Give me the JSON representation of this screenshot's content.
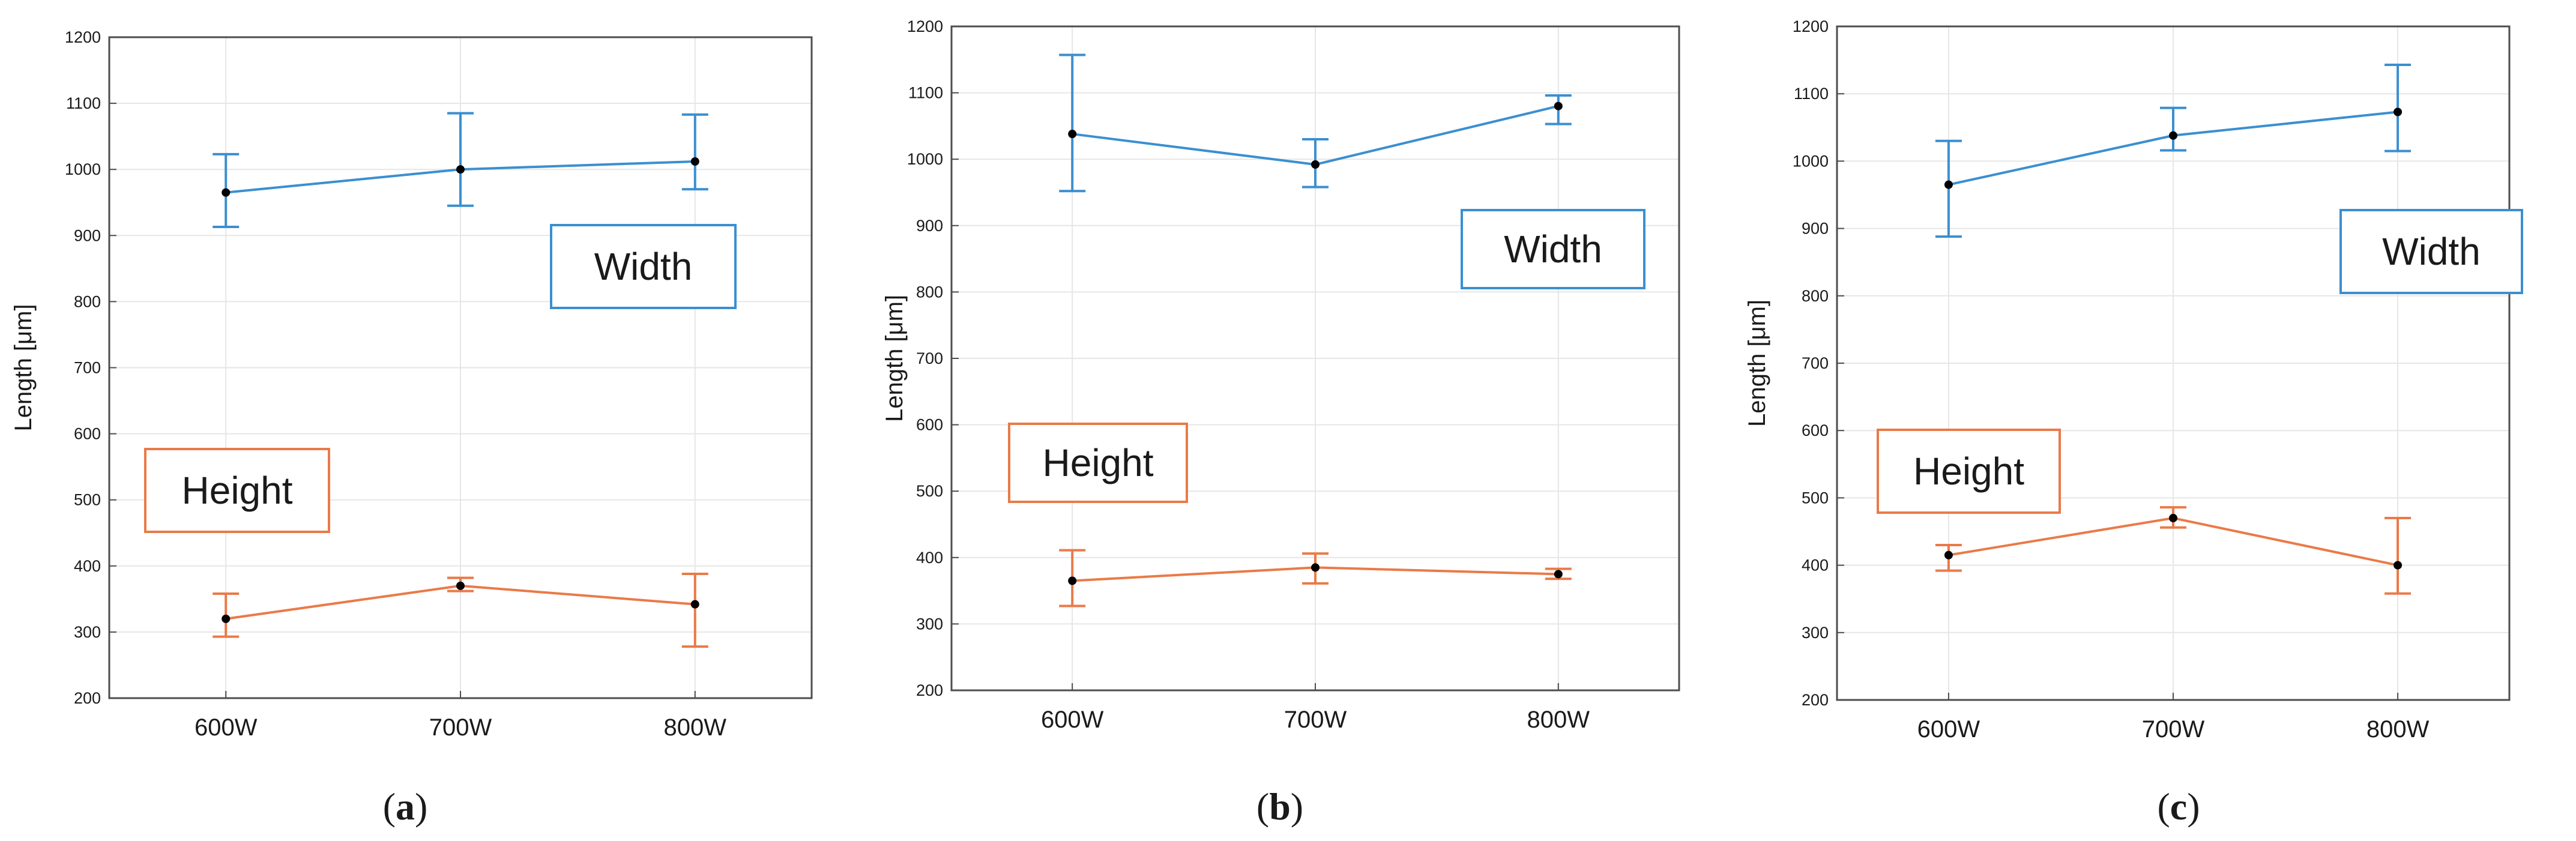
{
  "figure": {
    "panels_caption": [
      "(a)",
      "(b)",
      "(c)"
    ]
  },
  "colors": {
    "width_series": "#3b8fd0",
    "height_series": "#ea7a48",
    "point": "#000000",
    "grid": "#e6e6e6",
    "axis": "#4d4d4d",
    "text": "#1a1a1a"
  },
  "chart_data": [
    {
      "type": "line",
      "panel_label": "a",
      "caption": "(a)",
      "ylabel": "Length [μm]",
      "xlabel": "",
      "categories": [
        "600W",
        "700W",
        "800W"
      ],
      "ylim": [
        200,
        1200
      ],
      "yticks": [
        200,
        300,
        400,
        500,
        600,
        700,
        800,
        900,
        1000,
        1100,
        1200
      ],
      "grid": true,
      "series": [
        {
          "name": "Width",
          "color_key": "width_series",
          "values": [
            965,
            1000,
            1012
          ],
          "err_low": [
            913,
            945,
            970
          ],
          "err_high": [
            1023,
            1085,
            1083
          ]
        },
        {
          "name": "Height",
          "color_key": "height_series",
          "values": [
            320,
            370,
            342
          ],
          "err_low": [
            293,
            362,
            278
          ],
          "err_high": [
            358,
            382,
            388
          ]
        }
      ],
      "annotations": [
        {
          "text": "Width",
          "series": "Width",
          "anchor": "right-upper"
        },
        {
          "text": "Height",
          "series": "Height",
          "anchor": "left-lower"
        }
      ]
    },
    {
      "type": "line",
      "panel_label": "b",
      "caption": "(b)",
      "ylabel": "Length [μm]",
      "xlabel": "",
      "categories": [
        "600W",
        "700W",
        "800W"
      ],
      "ylim": [
        200,
        1200
      ],
      "yticks": [
        200,
        300,
        400,
        500,
        600,
        700,
        800,
        900,
        1000,
        1100,
        1200
      ],
      "grid": true,
      "series": [
        {
          "name": "Width",
          "color_key": "width_series",
          "values": [
            1038,
            992,
            1080
          ],
          "err_low": [
            952,
            958,
            1053
          ],
          "err_high": [
            1157,
            1030,
            1096
          ]
        },
        {
          "name": "Height",
          "color_key": "height_series",
          "values": [
            365,
            385,
            375
          ],
          "err_low": [
            327,
            361,
            368
          ],
          "err_high": [
            411,
            406,
            383
          ]
        }
      ],
      "annotations": [
        {
          "text": "Width",
          "series": "Width",
          "anchor": "right-upper"
        },
        {
          "text": "Height",
          "series": "Height",
          "anchor": "left-lower"
        }
      ]
    },
    {
      "type": "line",
      "panel_label": "c",
      "caption": "(c)",
      "ylabel": "Length [μm]",
      "xlabel": "",
      "categories": [
        "600W",
        "700W",
        "800W"
      ],
      "ylim": [
        200,
        1200
      ],
      "yticks": [
        200,
        300,
        400,
        500,
        600,
        700,
        800,
        900,
        1000,
        1100,
        1200
      ],
      "grid": true,
      "series": [
        {
          "name": "Width",
          "color_key": "width_series",
          "values": [
            965,
            1038,
            1073
          ],
          "err_low": [
            888,
            1016,
            1015
          ],
          "err_high": [
            1030,
            1079,
            1143
          ]
        },
        {
          "name": "Height",
          "color_key": "height_series",
          "values": [
            415,
            470,
            400
          ],
          "err_low": [
            392,
            456,
            358
          ],
          "err_high": [
            430,
            486,
            470
          ]
        }
      ],
      "annotations": [
        {
          "text": "Width",
          "series": "Width",
          "anchor": "right-upper"
        },
        {
          "text": "Height",
          "series": "Height",
          "anchor": "left-lower"
        }
      ]
    }
  ]
}
